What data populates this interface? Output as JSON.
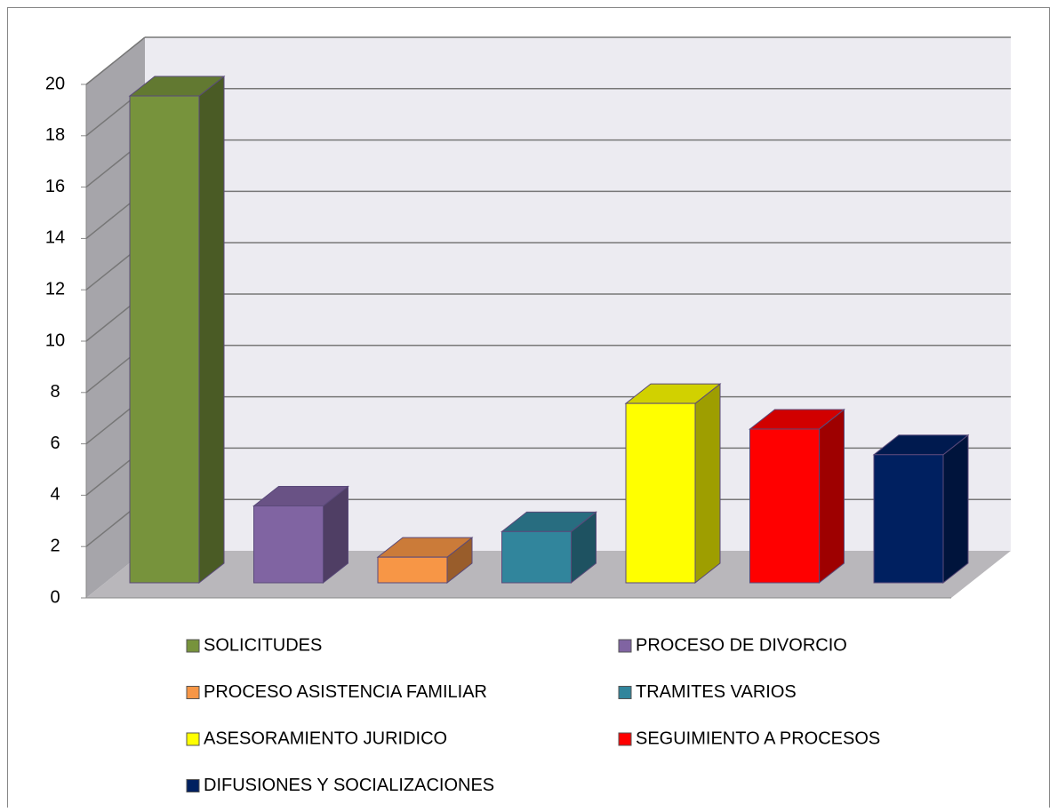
{
  "chart_data": {
    "type": "bar3d",
    "series": [
      {
        "name": "SOLICITUDES",
        "color": "#77933c",
        "values": [
          19
        ]
      },
      {
        "name": "PROCESO DE DIVORCIO",
        "color": "#8064a2",
        "values": [
          3
        ]
      },
      {
        "name": "PROCESO ASISTENCIA FAMILIAR",
        "color": "#f79646",
        "values": [
          1
        ]
      },
      {
        "name": "TRAMITES VARIOS",
        "color": "#31859c",
        "values": [
          2
        ]
      },
      {
        "name": "ASESORAMIENTO JURIDICO",
        "color": "#ffff00",
        "values": [
          7
        ]
      },
      {
        "name": "SEGUIMIENTO A PROCESOS",
        "color": "#ff0000",
        "values": [
          6
        ]
      },
      {
        "name": "DIFUSIONES Y SOCIALIZACIONES",
        "color": "#002060",
        "values": [
          5
        ]
      }
    ],
    "ylim": [
      0,
      20
    ],
    "yticks": [
      0,
      2,
      4,
      6,
      8,
      10,
      12,
      14,
      16,
      18,
      20
    ],
    "grid": true,
    "legend": "bottom"
  }
}
